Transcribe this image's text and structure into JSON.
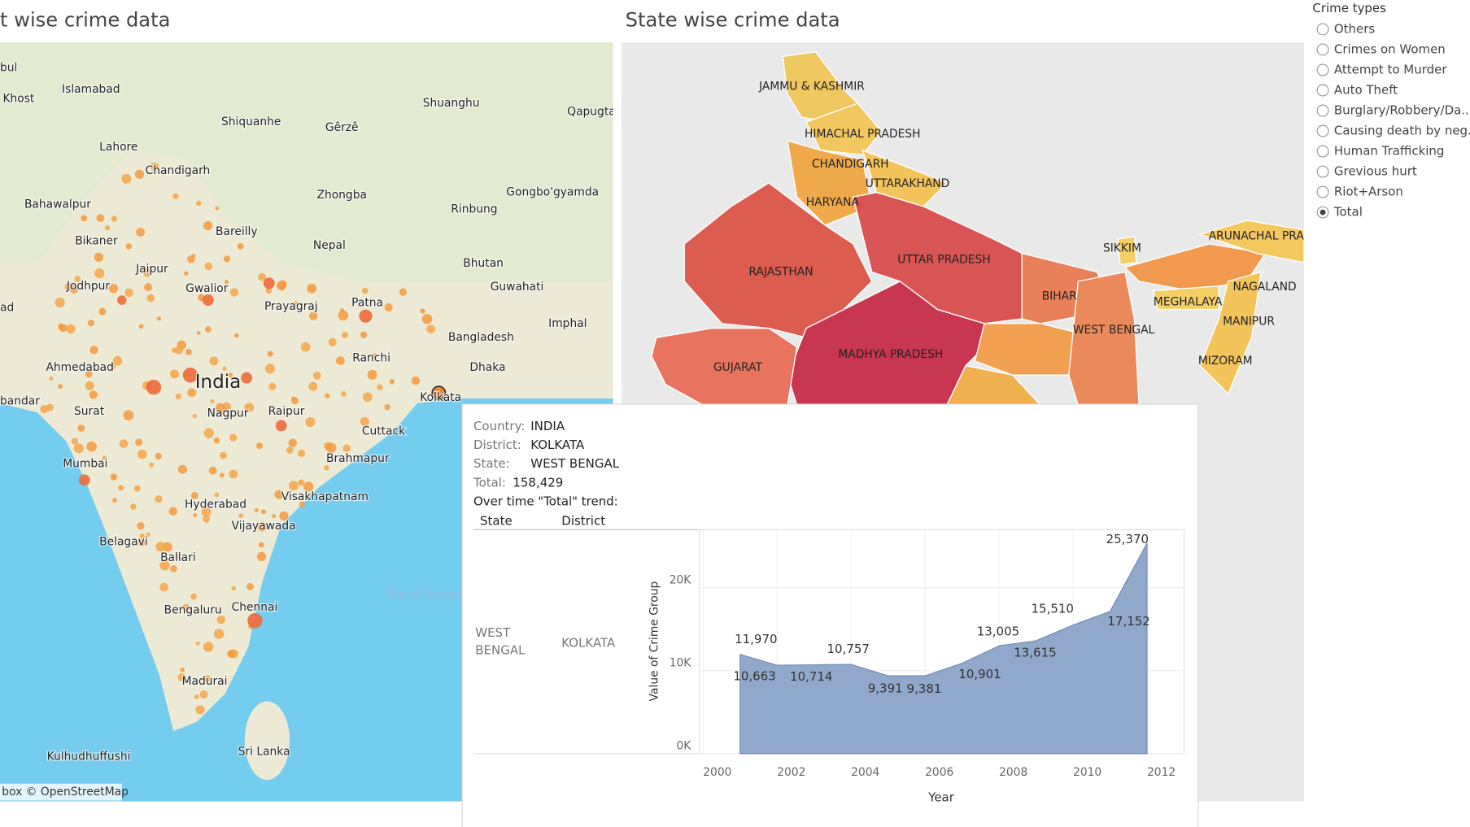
{
  "district_map": {
    "title": "t wise crime data",
    "places": [
      "bul",
      "Khost",
      "Islamabad",
      "Shuanghu",
      "Qapugta",
      "Shiquanhe",
      "Gêrzê",
      "Lahore",
      "Chandigarh",
      "Zhongba",
      "Gongbo'gyamda",
      "Bahawalpur",
      "Rinbung",
      "Bikaner",
      "Bareilly",
      "Nepal",
      "Bhutan",
      "Jaipur",
      "Jodhpur",
      "Gwalior",
      "Prayagraj",
      "Patna",
      "Guwahati",
      "ad",
      "Imphal",
      "Bangladesh",
      "Ahmedabad",
      "Ranchi",
      "Dhaka",
      "India",
      "bandar",
      "Surat",
      "Nagpur",
      "Raipur",
      "Kolkata",
      "Cuttack",
      "Mumbai",
      "Brahmapur",
      "Hyderabad",
      "Visakhapatnam",
      "Vijayawada",
      "Belagavi",
      "Ballari",
      "Bengaluru",
      "Chennai",
      "Madurai",
      "Kulhudhuffushi",
      "Sri Lanka",
      "Bay of Bengal"
    ],
    "attribution": "box © OpenStreetMap"
  },
  "state_map": {
    "title": "State wise crime data",
    "states": [
      "JAMMU & KASHMIR",
      "HIMACHAL PRADESH",
      "CHANDIGARH",
      "UTTARAKHAND",
      "HARYANA",
      "RAJASTHAN",
      "UTTAR PRADESH",
      "BIHAR",
      "SIKKIM",
      "ARUNACHAL PRA",
      "NAGALAND",
      "MEGHALAYA",
      "MANIPUR",
      "WEST BENGAL",
      "MIZORAM",
      "MADHYA PRADESH",
      "GUJARAT"
    ]
  },
  "filter": {
    "title": "Crime types",
    "options": [
      {
        "label": "Others",
        "selected": false
      },
      {
        "label": "Crimes on Women",
        "selected": false
      },
      {
        "label": "Attempt to Murder",
        "selected": false
      },
      {
        "label": "Auto Theft",
        "selected": false
      },
      {
        "label": "Burglary/Robbery/Da...",
        "selected": false
      },
      {
        "label": "Causing death by neg...",
        "selected": false
      },
      {
        "label": "Human Trafficking",
        "selected": false
      },
      {
        "label": "Grevious hurt",
        "selected": false
      },
      {
        "label": "Riot+Arson",
        "selected": false
      },
      {
        "label": "Total",
        "selected": true
      }
    ]
  },
  "tooltip": {
    "fields": [
      {
        "label": "Country:",
        "value": "INDIA"
      },
      {
        "label": "District:",
        "value": "KOLKATA"
      },
      {
        "label": "State:",
        "value": "WEST BENGAL"
      },
      {
        "label": "Total:",
        "value": "158,429"
      }
    ],
    "trend_title": "Over time \"Total\" trend:",
    "table_headers": [
      "State",
      "District"
    ],
    "row": [
      "WEST BENGAL",
      "KOLKATA"
    ]
  },
  "chart_data": {
    "type": "area",
    "x_label": "Year",
    "y_label": "Value of Crime Group",
    "x": [
      2001,
      2002,
      2003,
      2004,
      2005,
      2006,
      2007,
      2008,
      2009,
      2010,
      2011,
      2012
    ],
    "series": [
      {
        "name": "Total",
        "color": "#8aa3c6",
        "values": [
          11970,
          10663,
          10714,
          10757,
          9391,
          9381,
          10901,
          13005,
          13615,
          15510,
          17152,
          25370
        ],
        "value_labels": [
          "11,970",
          "10,663",
          "10,714",
          "10,757",
          "9,391",
          "9,381",
          "10,901",
          "13,005",
          "13,615",
          "15,510",
          "17,152",
          "25,370"
        ]
      }
    ],
    "xlim": [
      1999.9,
      2013
    ],
    "xticks": [
      2000,
      2002,
      2004,
      2006,
      2008,
      2010,
      2012
    ],
    "ylim": [
      0,
      27000
    ],
    "yticks": [
      {
        "value": 0,
        "label": "0K"
      },
      {
        "value": 10000,
        "label": "10K"
      },
      {
        "value": 20000,
        "label": "20K"
      }
    ],
    "grid": true
  }
}
